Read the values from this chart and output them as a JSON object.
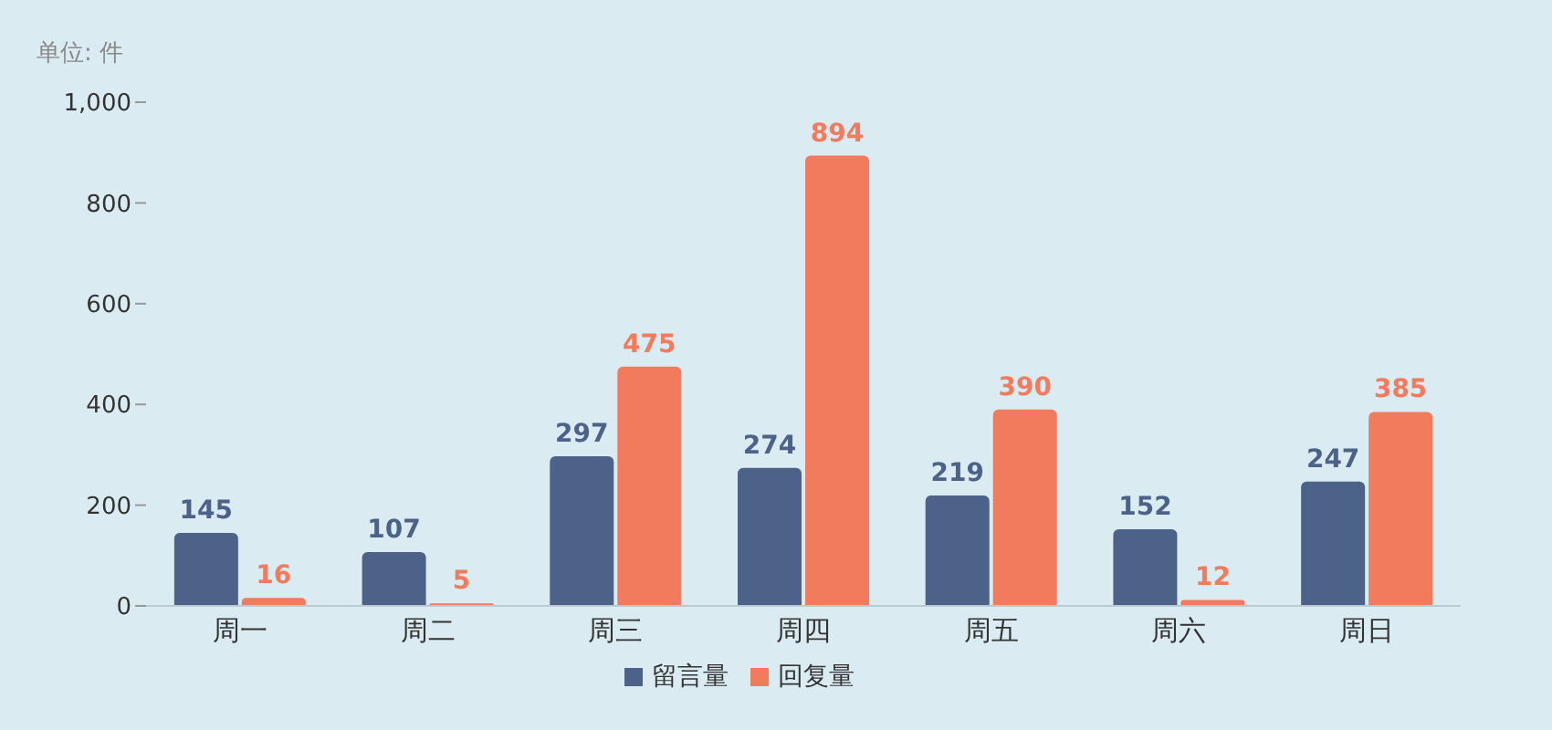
{
  "chart_data": {
    "type": "bar",
    "ylabel": "单位: 件",
    "categories": [
      "周一",
      "周二",
      "周三",
      "周四",
      "周五",
      "周六",
      "周日"
    ],
    "series": [
      {
        "name": "留言量",
        "color": "#4d6289",
        "values": [
          145,
          107,
          297,
          274,
          219,
          152,
          247
        ]
      },
      {
        "name": "回复量",
        "color": "#f27b5e",
        "values": [
          16,
          5,
          475,
          894,
          390,
          12,
          385
        ]
      }
    ],
    "ylim": [
      0,
      1000
    ],
    "yticks": [
      0,
      200,
      400,
      600,
      800,
      {
        "value": 1000,
        "label": "1,000"
      }
    ],
    "grid": false,
    "legend": "bottom",
    "data_labels": true
  }
}
